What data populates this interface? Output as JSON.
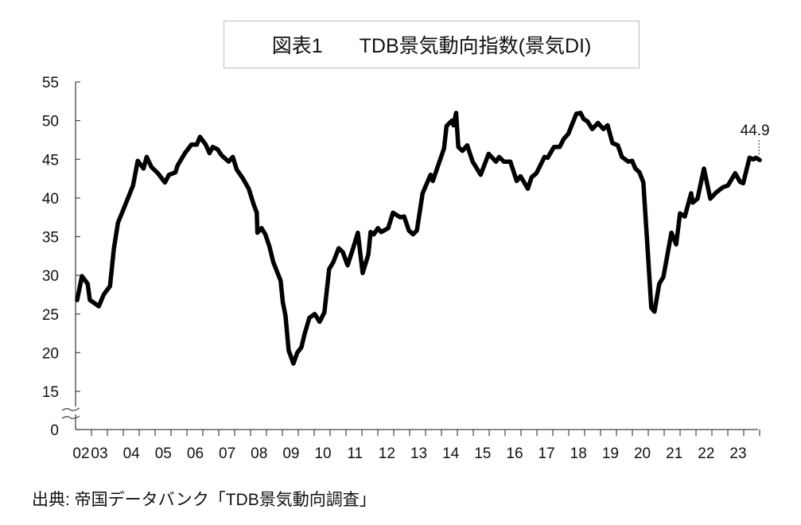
{
  "chart_data": {
    "type": "line",
    "title_prefix": "図表1",
    "title": "TDB景気動向指数(景気DI)",
    "source": "出典: 帝国データバンク「TDB景気動向調査」",
    "xlabel": "",
    "ylabel": "",
    "ylim": [
      0,
      55
    ],
    "y_axis_break": [
      0,
      15
    ],
    "yticks": [
      "0",
      "15",
      "20",
      "25",
      "30",
      "35",
      "40",
      "45",
      "50",
      "55"
    ],
    "ytick_values": [
      0,
      15,
      20,
      25,
      30,
      35,
      40,
      45,
      50,
      55
    ],
    "xticks": [
      "02",
      "03",
      "04",
      "05",
      "06",
      "07",
      "08",
      "09",
      "10",
      "11",
      "12",
      "13",
      "14",
      "15",
      "16",
      "17",
      "18",
      "19",
      "20",
      "21",
      "22",
      "23"
    ],
    "xlim": [
      2002.33,
      2023.75
    ],
    "grid": false,
    "annotation": {
      "label": "44.9",
      "x": 2023.73,
      "y": 44.9
    },
    "series": [
      {
        "name": "景気DI",
        "color": "#000000",
        "points": [
          [
            2002.33,
            26.8
          ],
          [
            2002.48,
            29.9
          ],
          [
            2002.66,
            28.9
          ],
          [
            2002.73,
            26.8
          ],
          [
            2003.01,
            26.0
          ],
          [
            2003.16,
            27.5
          ],
          [
            2003.36,
            28.6
          ],
          [
            2003.48,
            33.4
          ],
          [
            2003.61,
            36.8
          ],
          [
            2003.78,
            38.5
          ],
          [
            2004.08,
            41.6
          ],
          [
            2004.23,
            44.8
          ],
          [
            2004.41,
            43.8
          ],
          [
            2004.51,
            45.3
          ],
          [
            2004.66,
            44.0
          ],
          [
            2004.86,
            43.2
          ],
          [
            2005.08,
            42.0
          ],
          [
            2005.21,
            43.0
          ],
          [
            2005.41,
            43.3
          ],
          [
            2005.48,
            44.2
          ],
          [
            2005.71,
            45.8
          ],
          [
            2005.91,
            46.9
          ],
          [
            2006.08,
            46.9
          ],
          [
            2006.18,
            47.9
          ],
          [
            2006.36,
            46.9
          ],
          [
            2006.48,
            45.8
          ],
          [
            2006.58,
            46.6
          ],
          [
            2006.73,
            46.3
          ],
          [
            2006.86,
            45.5
          ],
          [
            2007.08,
            44.7
          ],
          [
            2007.21,
            45.3
          ],
          [
            2007.33,
            43.7
          ],
          [
            2007.53,
            42.5
          ],
          [
            2007.71,
            41.2
          ],
          [
            2007.86,
            39.2
          ],
          [
            2007.96,
            38.1
          ],
          [
            2007.98,
            35.5
          ],
          [
            2008.11,
            36.1
          ],
          [
            2008.23,
            35.3
          ],
          [
            2008.36,
            33.7
          ],
          [
            2008.48,
            31.7
          ],
          [
            2008.71,
            29.3
          ],
          [
            2008.78,
            26.5
          ],
          [
            2008.86,
            24.8
          ],
          [
            2008.96,
            20.3
          ],
          [
            2009.11,
            18.6
          ],
          [
            2009.23,
            20.0
          ],
          [
            2009.36,
            20.7
          ],
          [
            2009.46,
            22.4
          ],
          [
            2009.61,
            24.5
          ],
          [
            2009.78,
            25.0
          ],
          [
            2009.93,
            24.0
          ],
          [
            2010.08,
            25.2
          ],
          [
            2010.23,
            30.8
          ],
          [
            2010.36,
            31.7
          ],
          [
            2010.53,
            33.5
          ],
          [
            2010.66,
            33.0
          ],
          [
            2010.81,
            31.3
          ],
          [
            2010.98,
            33.5
          ],
          [
            2011.13,
            35.5
          ],
          [
            2011.28,
            30.3
          ],
          [
            2011.46,
            32.7
          ],
          [
            2011.53,
            35.6
          ],
          [
            2011.63,
            35.3
          ],
          [
            2011.76,
            36.1
          ],
          [
            2011.86,
            35.6
          ],
          [
            2012.08,
            36.1
          ],
          [
            2012.23,
            38.1
          ],
          [
            2012.46,
            37.5
          ],
          [
            2012.58,
            37.6
          ],
          [
            2012.73,
            35.8
          ],
          [
            2012.86,
            35.3
          ],
          [
            2012.98,
            35.8
          ],
          [
            2013.16,
            40.6
          ],
          [
            2013.41,
            43.0
          ],
          [
            2013.48,
            42.2
          ],
          [
            2013.83,
            46.4
          ],
          [
            2013.91,
            49.3
          ],
          [
            2014.08,
            50.0
          ],
          [
            2014.13,
            49.4
          ],
          [
            2014.21,
            51.0
          ],
          [
            2014.28,
            46.6
          ],
          [
            2014.41,
            46.1
          ],
          [
            2014.56,
            46.8
          ],
          [
            2014.73,
            44.7
          ],
          [
            2014.98,
            43.0
          ],
          [
            2015.23,
            45.7
          ],
          [
            2015.46,
            44.7
          ],
          [
            2015.56,
            45.3
          ],
          [
            2015.71,
            44.7
          ],
          [
            2015.91,
            44.7
          ],
          [
            2016.11,
            42.2
          ],
          [
            2016.23,
            42.8
          ],
          [
            2016.46,
            41.2
          ],
          [
            2016.58,
            42.7
          ],
          [
            2016.73,
            43.2
          ],
          [
            2016.98,
            45.3
          ],
          [
            2017.08,
            45.2
          ],
          [
            2017.28,
            46.6
          ],
          [
            2017.46,
            46.6
          ],
          [
            2017.58,
            47.6
          ],
          [
            2017.73,
            48.3
          ],
          [
            2017.98,
            50.9
          ],
          [
            2018.11,
            51.0
          ],
          [
            2018.21,
            50.2
          ],
          [
            2018.33,
            49.9
          ],
          [
            2018.48,
            48.9
          ],
          [
            2018.66,
            49.7
          ],
          [
            2018.83,
            48.9
          ],
          [
            2018.96,
            49.4
          ],
          [
            2019.11,
            47.1
          ],
          [
            2019.28,
            46.8
          ],
          [
            2019.41,
            45.3
          ],
          [
            2019.61,
            44.7
          ],
          [
            2019.73,
            44.8
          ],
          [
            2019.83,
            43.8
          ],
          [
            2019.96,
            43.3
          ],
          [
            2020.08,
            42.0
          ],
          [
            2020.23,
            32.4
          ],
          [
            2020.33,
            25.8
          ],
          [
            2020.43,
            25.3
          ],
          [
            2020.58,
            28.9
          ],
          [
            2020.71,
            29.8
          ],
          [
            2020.96,
            35.5
          ],
          [
            2021.11,
            34.0
          ],
          [
            2021.23,
            38.0
          ],
          [
            2021.38,
            37.6
          ],
          [
            2021.58,
            40.6
          ],
          [
            2021.63,
            39.4
          ],
          [
            2021.78,
            39.9
          ],
          [
            2021.98,
            43.8
          ],
          [
            2022.18,
            39.9
          ],
          [
            2022.36,
            40.7
          ],
          [
            2022.58,
            41.4
          ],
          [
            2022.73,
            41.6
          ],
          [
            2022.96,
            43.2
          ],
          [
            2023.11,
            42.1
          ],
          [
            2023.21,
            41.9
          ],
          [
            2023.41,
            45.2
          ],
          [
            2023.53,
            45.0
          ],
          [
            2023.61,
            45.2
          ],
          [
            2023.73,
            44.9
          ]
        ]
      }
    ]
  }
}
